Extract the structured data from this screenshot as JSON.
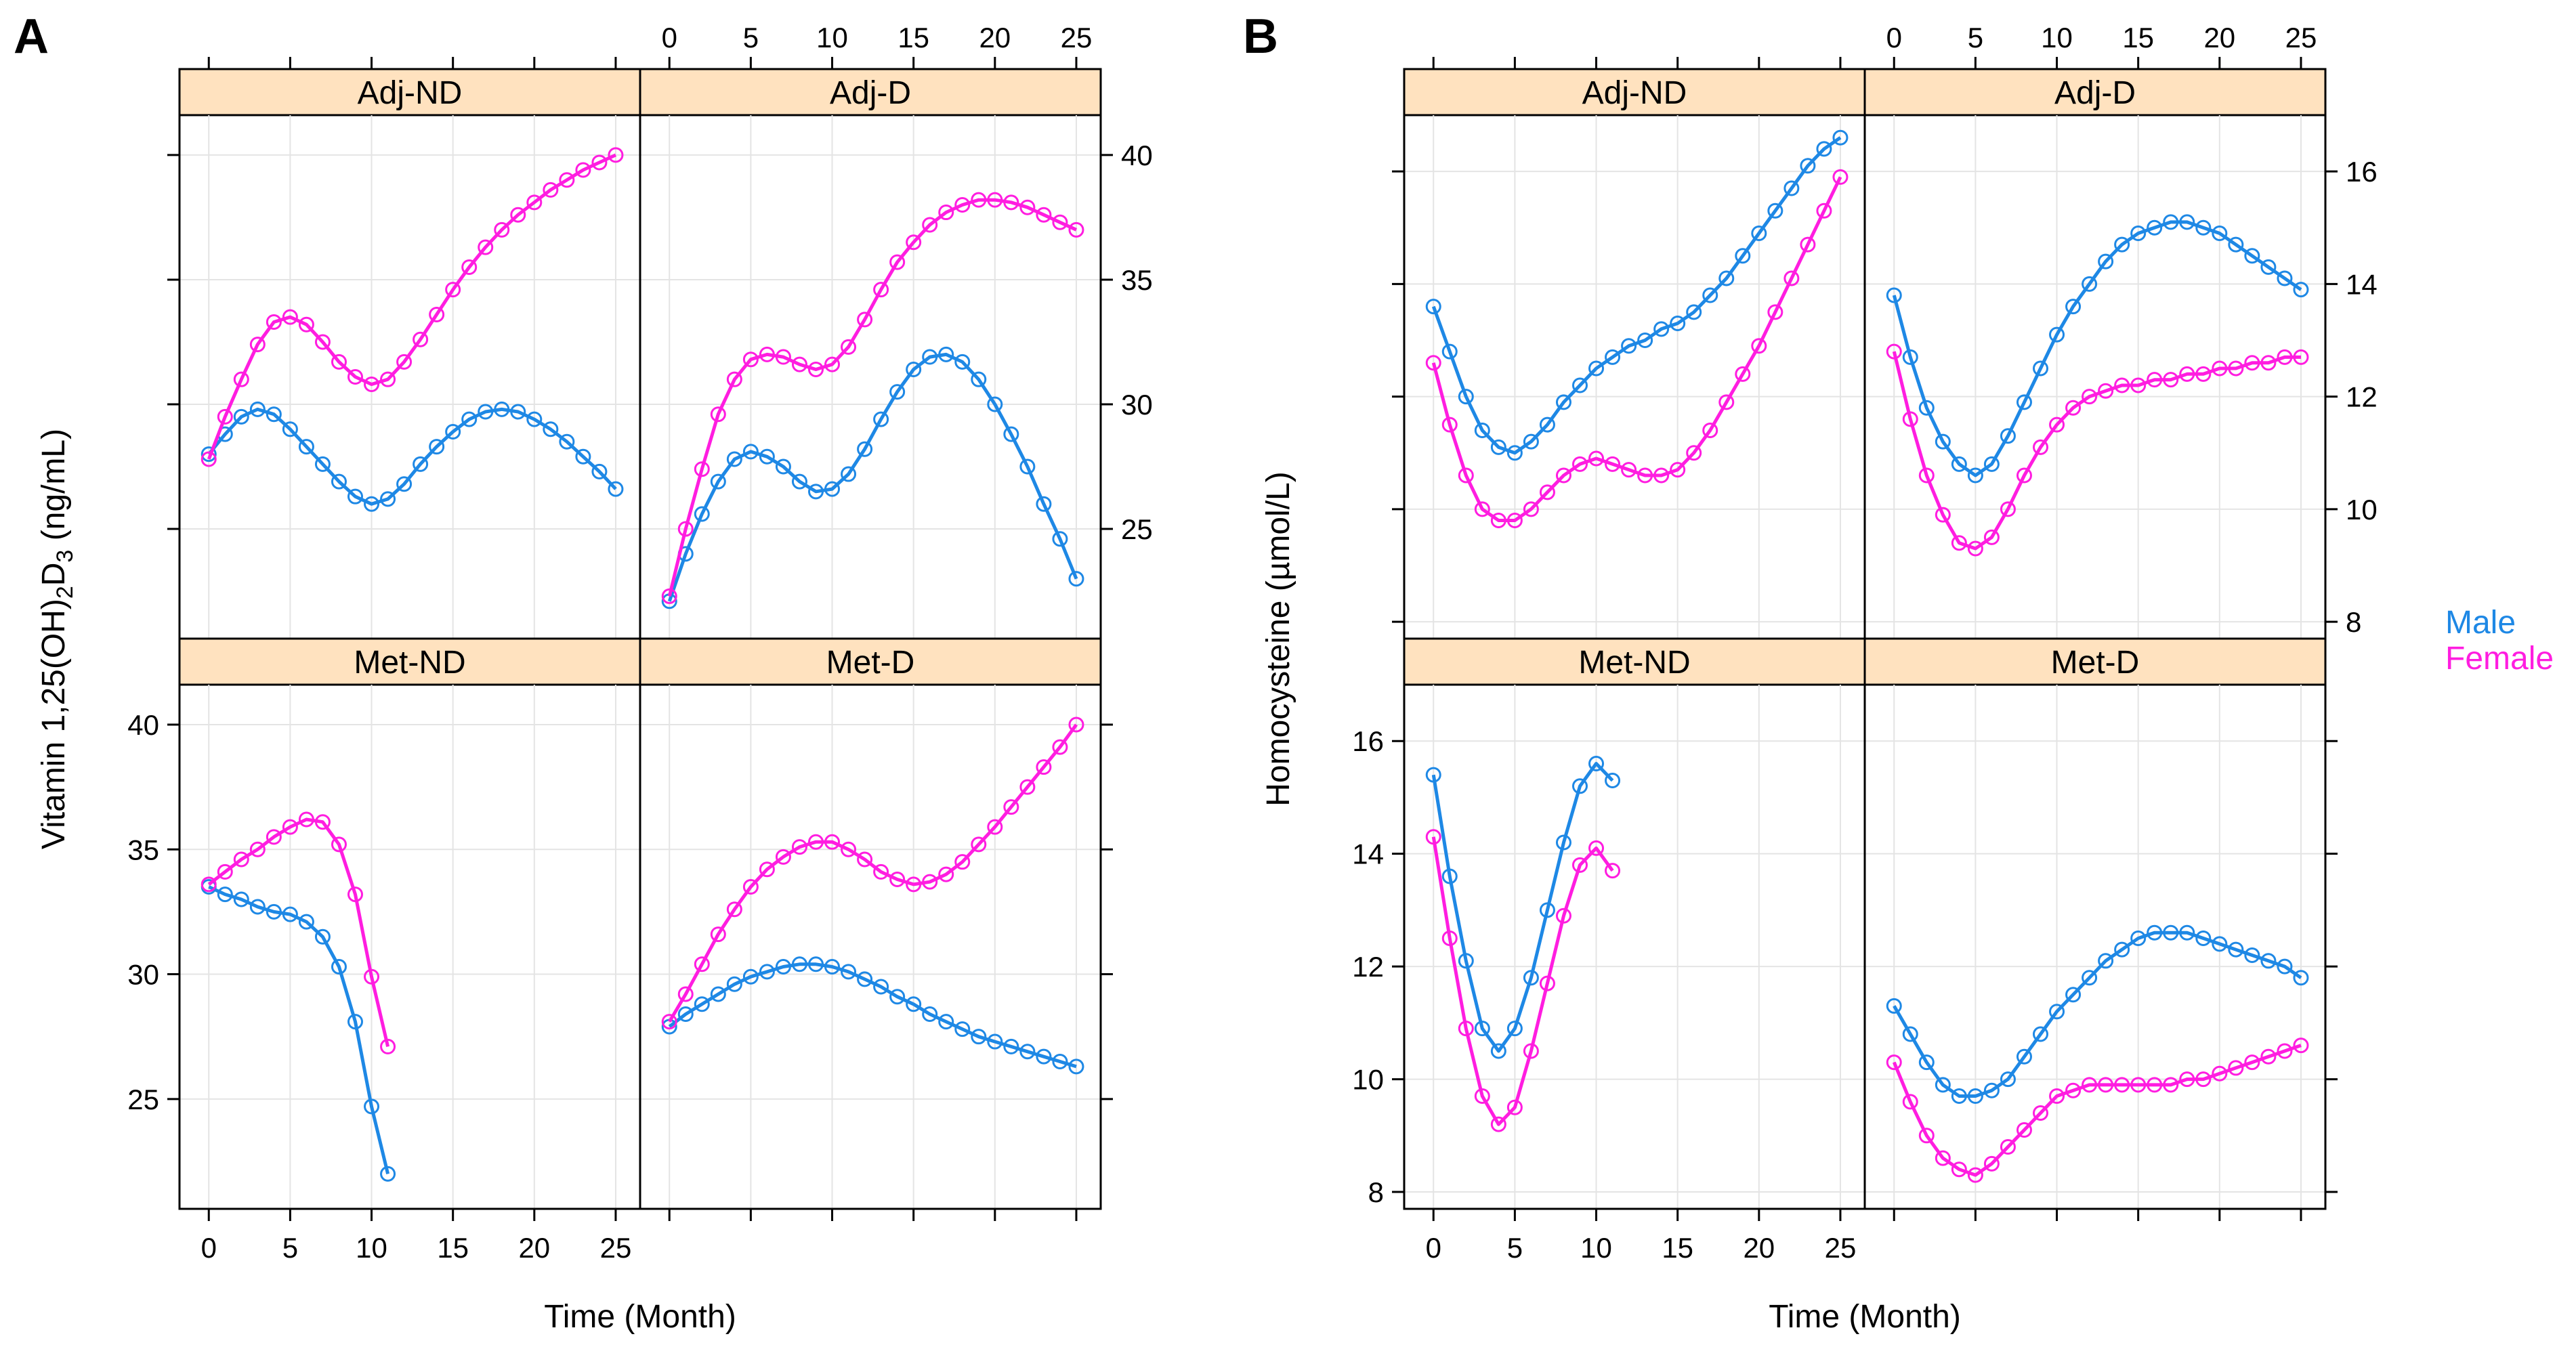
{
  "colors": {
    "male": "#1E88E5",
    "female": "#FF1DE0",
    "strip": "#FFE2BF",
    "grid": "#E4E4E4",
    "frame": "#000000"
  },
  "legend": {
    "male": "Male",
    "female": "Female"
  },
  "chart_data": [
    {
      "type": "line",
      "panel_label": "A",
      "title": "",
      "xlabel": "Time (Month)",
      "ylabel_main": "Vitamin 1,25(OH)",
      "ylabel_sub1": "2",
      "ylabel_mid": "D",
      "ylabel_sub2": "3",
      "ylabel_tail": " (ng/mL)",
      "xlim": [
        -1.8,
        26.5
      ],
      "ylim": [
        20.6,
        41.6
      ],
      "xticks": [
        0,
        5,
        10,
        15,
        20,
        25
      ],
      "yticks": [
        25,
        30,
        35,
        40
      ],
      "panels": [
        {
          "name": "Adj-ND",
          "series": [
            {
              "name": "Male",
              "x": [
                0,
                1,
                2,
                3,
                4,
                5,
                6,
                7,
                8,
                9,
                10,
                11,
                12,
                13,
                14,
                15,
                16,
                17,
                18,
                19,
                20,
                21,
                22,
                23,
                24,
                25
              ],
              "y": [
                28.0,
                28.8,
                29.5,
                29.8,
                29.6,
                29.0,
                28.3,
                27.6,
                26.9,
                26.3,
                26.0,
                26.2,
                26.8,
                27.6,
                28.3,
                28.9,
                29.4,
                29.7,
                29.8,
                29.7,
                29.4,
                29.0,
                28.5,
                27.9,
                27.3,
                26.6
              ]
            },
            {
              "name": "Female",
              "x": [
                0,
                1,
                2,
                3,
                4,
                5,
                6,
                7,
                8,
                9,
                10,
                11,
                12,
                13,
                14,
                15,
                16,
                17,
                18,
                19,
                20,
                21,
                22,
                23,
                24,
                25
              ],
              "y": [
                27.8,
                29.5,
                31.0,
                32.4,
                33.3,
                33.5,
                33.2,
                32.5,
                31.7,
                31.1,
                30.8,
                31.0,
                31.7,
                32.6,
                33.6,
                34.6,
                35.5,
                36.3,
                37.0,
                37.6,
                38.1,
                38.6,
                39.0,
                39.4,
                39.7,
                40.0
              ]
            }
          ]
        },
        {
          "name": "Adj-D",
          "series": [
            {
              "name": "Male",
              "x": [
                0,
                1,
                2,
                3,
                4,
                5,
                6,
                7,
                8,
                9,
                10,
                11,
                12,
                13,
                14,
                15,
                16,
                17,
                18,
                19,
                20,
                21,
                22,
                23,
                24,
                25
              ],
              "y": [
                22.1,
                24.0,
                25.6,
                26.9,
                27.8,
                28.1,
                27.9,
                27.5,
                26.9,
                26.5,
                26.6,
                27.2,
                28.2,
                29.4,
                30.5,
                31.4,
                31.9,
                32.0,
                31.7,
                31.0,
                30.0,
                28.8,
                27.5,
                26.0,
                24.6,
                23.0
              ]
            },
            {
              "name": "Female",
              "x": [
                0,
                1,
                2,
                3,
                4,
                5,
                6,
                7,
                8,
                9,
                10,
                11,
                12,
                13,
                14,
                15,
                16,
                17,
                18,
                19,
                20,
                21,
                22,
                23,
                24,
                25
              ],
              "y": [
                22.3,
                25.0,
                27.4,
                29.6,
                31.0,
                31.8,
                32.0,
                31.9,
                31.6,
                31.4,
                31.6,
                32.3,
                33.4,
                34.6,
                35.7,
                36.5,
                37.2,
                37.7,
                38.0,
                38.2,
                38.2,
                38.1,
                37.9,
                37.6,
                37.3,
                37.0
              ]
            }
          ]
        },
        {
          "name": "Met-ND",
          "series": [
            {
              "name": "Male",
              "x": [
                0,
                1,
                2,
                3,
                4,
                5,
                6,
                7,
                8,
                9,
                10,
                11
              ],
              "y": [
                33.5,
                33.2,
                33.0,
                32.7,
                32.5,
                32.4,
                32.1,
                31.5,
                30.3,
                28.1,
                24.7,
                22.0
              ]
            },
            {
              "name": "Female",
              "x": [
                0,
                1,
                2,
                3,
                4,
                5,
                6,
                7,
                8,
                9,
                10,
                11
              ],
              "y": [
                33.6,
                34.1,
                34.6,
                35.0,
                35.5,
                35.9,
                36.2,
                36.1,
                35.2,
                33.2,
                29.9,
                27.1
              ]
            }
          ]
        },
        {
          "name": "Met-D",
          "series": [
            {
              "name": "Male",
              "x": [
                0,
                1,
                2,
                3,
                4,
                5,
                6,
                7,
                8,
                9,
                10,
                11,
                12,
                13,
                14,
                15,
                16,
                17,
                18,
                19,
                20,
                21,
                22,
                23,
                24,
                25
              ],
              "y": [
                27.9,
                28.4,
                28.8,
                29.2,
                29.6,
                29.9,
                30.1,
                30.3,
                30.4,
                30.4,
                30.3,
                30.1,
                29.8,
                29.5,
                29.1,
                28.8,
                28.4,
                28.1,
                27.8,
                27.5,
                27.3,
                27.1,
                26.9,
                26.7,
                26.5,
                26.3
              ]
            },
            {
              "name": "Female",
              "x": [
                0,
                1,
                2,
                3,
                4,
                5,
                6,
                7,
                8,
                9,
                10,
                11,
                12,
                13,
                14,
                15,
                16,
                17,
                18,
                19,
                20,
                21,
                22,
                23,
                24,
                25
              ],
              "y": [
                28.1,
                29.2,
                30.4,
                31.6,
                32.6,
                33.5,
                34.2,
                34.7,
                35.1,
                35.3,
                35.3,
                35.0,
                34.6,
                34.1,
                33.8,
                33.6,
                33.7,
                34.0,
                34.5,
                35.2,
                35.9,
                36.7,
                37.5,
                38.3,
                39.1,
                40.0
              ]
            }
          ]
        }
      ]
    },
    {
      "type": "line",
      "panel_label": "B",
      "title": "",
      "xlabel": "Time (Month)",
      "ylabel": "Homocysteine (µmol/L)",
      "xlim": [
        -1.8,
        26.5
      ],
      "ylim": [
        7.7,
        17.0
      ],
      "xticks": [
        0,
        5,
        10,
        15,
        20,
        25
      ],
      "yticks": [
        8,
        10,
        12,
        14,
        16
      ],
      "panels": [
        {
          "name": "Adj-ND",
          "series": [
            {
              "name": "Male",
              "x": [
                0,
                1,
                2,
                3,
                4,
                5,
                6,
                7,
                8,
                9,
                10,
                11,
                12,
                13,
                14,
                15,
                16,
                17,
                18,
                19,
                20,
                21,
                22,
                23,
                24,
                25
              ],
              "y": [
                13.6,
                12.8,
                12.0,
                11.4,
                11.1,
                11.0,
                11.2,
                11.5,
                11.9,
                12.2,
                12.5,
                12.7,
                12.9,
                13.0,
                13.2,
                13.3,
                13.5,
                13.8,
                14.1,
                14.5,
                14.9,
                15.3,
                15.7,
                16.1,
                16.4,
                16.6
              ]
            },
            {
              "name": "Female",
              "x": [
                0,
                1,
                2,
                3,
                4,
                5,
                6,
                7,
                8,
                9,
                10,
                11,
                12,
                13,
                14,
                15,
                16,
                17,
                18,
                19,
                20,
                21,
                22,
                23,
                24,
                25
              ],
              "y": [
                12.6,
                11.5,
                10.6,
                10.0,
                9.8,
                9.8,
                10.0,
                10.3,
                10.6,
                10.8,
                10.9,
                10.8,
                10.7,
                10.6,
                10.6,
                10.7,
                11.0,
                11.4,
                11.9,
                12.4,
                12.9,
                13.5,
                14.1,
                14.7,
                15.3,
                15.9
              ]
            }
          ]
        },
        {
          "name": "Adj-D",
          "series": [
            {
              "name": "Male",
              "x": [
                0,
                1,
                2,
                3,
                4,
                5,
                6,
                7,
                8,
                9,
                10,
                11,
                12,
                13,
                14,
                15,
                16,
                17,
                18,
                19,
                20,
                21,
                22,
                23,
                24,
                25
              ],
              "y": [
                13.8,
                12.7,
                11.8,
                11.2,
                10.8,
                10.6,
                10.8,
                11.3,
                11.9,
                12.5,
                13.1,
                13.6,
                14.0,
                14.4,
                14.7,
                14.9,
                15.0,
                15.1,
                15.1,
                15.0,
                14.9,
                14.7,
                14.5,
                14.3,
                14.1,
                13.9
              ]
            },
            {
              "name": "Female",
              "x": [
                0,
                1,
                2,
                3,
                4,
                5,
                6,
                7,
                8,
                9,
                10,
                11,
                12,
                13,
                14,
                15,
                16,
                17,
                18,
                19,
                20,
                21,
                22,
                23,
                24,
                25
              ],
              "y": [
                12.8,
                11.6,
                10.6,
                9.9,
                9.4,
                9.3,
                9.5,
                10.0,
                10.6,
                11.1,
                11.5,
                11.8,
                12.0,
                12.1,
                12.2,
                12.2,
                12.3,
                12.3,
                12.4,
                12.4,
                12.5,
                12.5,
                12.6,
                12.6,
                12.7,
                12.7
              ]
            }
          ]
        },
        {
          "name": "Met-ND",
          "series": [
            {
              "name": "Male",
              "x": [
                0,
                1,
                2,
                3,
                4,
                5,
                6,
                7,
                8,
                9,
                10,
                11
              ],
              "y": [
                15.4,
                13.6,
                12.1,
                10.9,
                10.5,
                10.9,
                11.8,
                13.0,
                14.2,
                15.2,
                15.6,
                15.3
              ]
            },
            {
              "name": "Female",
              "x": [
                0,
                1,
                2,
                3,
                4,
                5,
                6,
                7,
                8,
                9,
                10,
                11
              ],
              "y": [
                14.3,
                12.5,
                10.9,
                9.7,
                9.2,
                9.5,
                10.5,
                11.7,
                12.9,
                13.8,
                14.1,
                13.7
              ]
            }
          ]
        },
        {
          "name": "Met-D",
          "series": [
            {
              "name": "Male",
              "x": [
                0,
                1,
                2,
                3,
                4,
                5,
                6,
                7,
                8,
                9,
                10,
                11,
                12,
                13,
                14,
                15,
                16,
                17,
                18,
                19,
                20,
                21,
                22,
                23,
                24,
                25
              ],
              "y": [
                11.3,
                10.8,
                10.3,
                9.9,
                9.7,
                9.7,
                9.8,
                10.0,
                10.4,
                10.8,
                11.2,
                11.5,
                11.8,
                12.1,
                12.3,
                12.5,
                12.6,
                12.6,
                12.6,
                12.5,
                12.4,
                12.3,
                12.2,
                12.1,
                12.0,
                11.8
              ]
            },
            {
              "name": "Female",
              "x": [
                0,
                1,
                2,
                3,
                4,
                5,
                6,
                7,
                8,
                9,
                10,
                11,
                12,
                13,
                14,
                15,
                16,
                17,
                18,
                19,
                20,
                21,
                22,
                23,
                24,
                25
              ],
              "y": [
                10.3,
                9.6,
                9.0,
                8.6,
                8.4,
                8.3,
                8.5,
                8.8,
                9.1,
                9.4,
                9.7,
                9.8,
                9.9,
                9.9,
                9.9,
                9.9,
                9.9,
                9.9,
                10.0,
                10.0,
                10.1,
                10.2,
                10.3,
                10.4,
                10.5,
                10.6
              ]
            }
          ]
        }
      ]
    }
  ]
}
